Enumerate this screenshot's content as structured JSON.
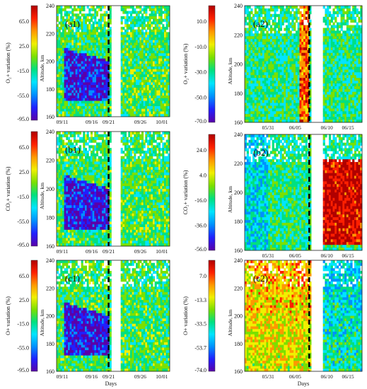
{
  "figure": {
    "colormap": [
      "#5a00a8",
      "#2020ff",
      "#0090ff",
      "#00e5ff",
      "#00e080",
      "#7ae000",
      "#f0f000",
      "#ff9800",
      "#ff2000",
      "#b00000"
    ],
    "event_line_color": "#000000",
    "blank_color": "#ffffff"
  },
  "chart_data": [
    {
      "id": "a1",
      "type": "heatmap",
      "panel_label": "(a1)",
      "colorbar_label": "O₂+ variation (%)",
      "colorbar_ticks": [
        "65.0",
        "25.0",
        "-15.0",
        "-55.0",
        "-95.0"
      ],
      "colorbar_range": [
        -95,
        95
      ],
      "ylabel": "Altitude, km",
      "yticks": [
        "240",
        "220",
        "200",
        "180",
        "160"
      ],
      "ylim": [
        160,
        240
      ],
      "xlabel": "",
      "xticks": [
        "09/11",
        "09/16",
        "09/21",
        "09/26",
        "10/01"
      ],
      "event_line_x": "09/21",
      "data_gaps": [
        [
          "09/21",
          "09/22"
        ]
      ],
      "grid": false
    },
    {
      "id": "a2",
      "type": "heatmap",
      "panel_label": "(a2)",
      "colorbar_label": "O₂+ variation (%)",
      "colorbar_ticks": [
        "10.0",
        "-10.0",
        "-30.0",
        "-50.0",
        "-70.0"
      ],
      "colorbar_range": [
        -70,
        20
      ],
      "ylabel": "Altitude, km",
      "yticks": [
        "240",
        "220",
        "200",
        "180",
        "160"
      ],
      "ylim": [
        160,
        240
      ],
      "xlabel": "",
      "xticks": [
        "05/31",
        "06/05",
        "06/10",
        "06/15"
      ],
      "event_line_x": "06/07",
      "data_gaps": [
        [
          "06/08",
          "06/09"
        ]
      ],
      "grid": false
    },
    {
      "id": "b1",
      "type": "heatmap",
      "panel_label": "(b1)",
      "colorbar_label": "CO₂+ variation (%)",
      "colorbar_ticks": [
        "65.0",
        "25.0",
        "-15.0",
        "-55.0",
        "-95.0"
      ],
      "colorbar_range": [
        -95,
        95
      ],
      "ylabel": "Altitude, km",
      "yticks": [
        "240",
        "220",
        "200",
        "180",
        "160"
      ],
      "ylim": [
        160,
        240
      ],
      "xlabel": "",
      "xticks": [
        "09/11",
        "09/16",
        "09/21",
        "09/26",
        "10/01"
      ],
      "event_line_x": "09/21",
      "data_gaps": [
        [
          "09/21",
          "09/22"
        ]
      ],
      "grid": false
    },
    {
      "id": "b2",
      "type": "heatmap",
      "panel_label": "(b2)",
      "colorbar_label": "CO₂+ variation (%)",
      "colorbar_ticks": [
        "24.0",
        "4.0",
        "-16.0",
        "-36.0",
        "-56.0"
      ],
      "colorbar_range": [
        -56,
        34
      ],
      "ylabel": "Altitude, km",
      "yticks": [
        "240",
        "220",
        "200",
        "180",
        "160"
      ],
      "ylim": [
        160,
        240
      ],
      "xlabel": "",
      "xticks": [
        "05/31",
        "06/05",
        "06/10",
        "06/15"
      ],
      "event_line_x": "06/07",
      "data_gaps": [
        [
          "06/08",
          "06/09"
        ]
      ],
      "grid": false
    },
    {
      "id": "c1",
      "type": "heatmap",
      "panel_label": "(c1)",
      "colorbar_label": "O+ variation (%)",
      "colorbar_ticks": [
        "65.0",
        "25.0",
        "-15.0",
        "-55.0",
        "-95.0"
      ],
      "colorbar_range": [
        -95,
        95
      ],
      "ylabel": "Altitude, km",
      "yticks": [
        "240",
        "220",
        "200",
        "180",
        "160"
      ],
      "ylim": [
        160,
        240
      ],
      "xlabel": "Days",
      "xticks": [
        "09/11",
        "09/16",
        "09/21",
        "09/26",
        "10/01"
      ],
      "event_line_x": "09/21",
      "data_gaps": [
        [
          "09/21",
          "09/22"
        ]
      ],
      "grid": false
    },
    {
      "id": "c2",
      "type": "heatmap",
      "panel_label": "(c2)",
      "colorbar_label": "O+ variation (%)",
      "colorbar_ticks": [
        "7.0",
        "-13.3",
        "-33.5",
        "-53.7",
        "-74.0"
      ],
      "colorbar_range": [
        -74,
        17
      ],
      "ylabel": "Altitude, km",
      "yticks": [
        "240",
        "220",
        "200",
        "180",
        "160"
      ],
      "ylim": [
        160,
        240
      ],
      "xlabel": "Days",
      "xticks": [
        "05/31",
        "06/05",
        "06/10",
        "06/15"
      ],
      "event_line_x": "06/07",
      "data_gaps": [
        [
          "06/08",
          "06/09"
        ]
      ],
      "grid": false
    }
  ]
}
